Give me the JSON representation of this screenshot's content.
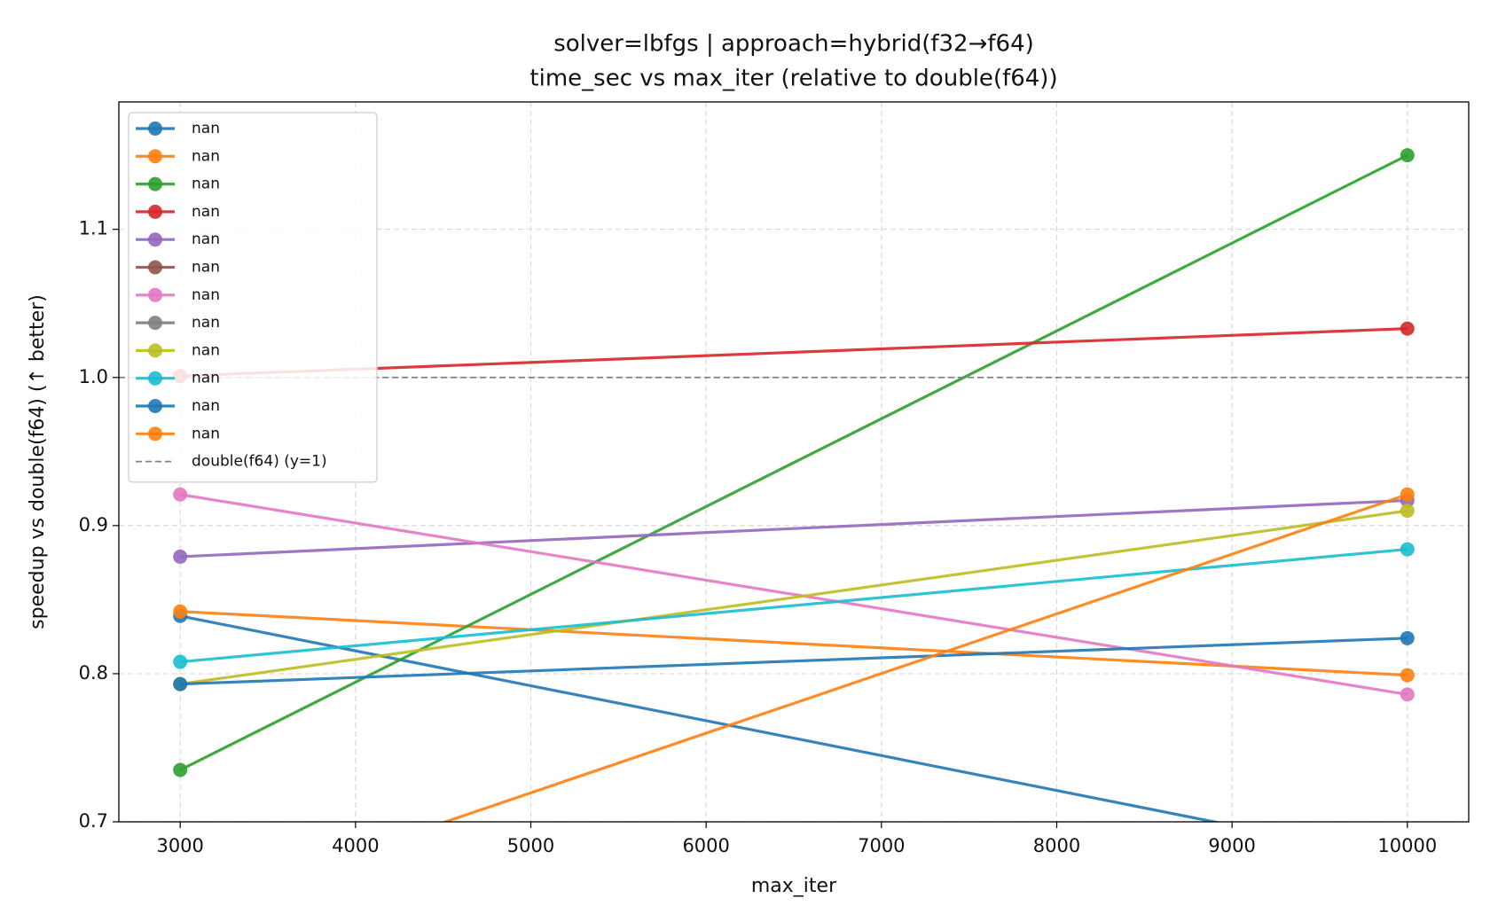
{
  "chart_data": {
    "type": "line",
    "title": "solver=lbfgs | approach=hybrid(f32→f64)",
    "subtitle": "time_sec vs max_iter (relative to double(f64))",
    "x_label": "max_iter",
    "y_label": "speedup vs double(f64) (↑ better)",
    "x": [
      3000,
      10000
    ],
    "series": [
      {
        "name": "nan",
        "color": "#1f77b4",
        "values": [
          0.839,
          0.674
        ]
      },
      {
        "name": "nan",
        "color": "#ff7f0e",
        "values": [
          0.842,
          0.799
        ]
      },
      {
        "name": "nan",
        "color": "#2ca02c",
        "values": [
          0.735,
          1.15
        ]
      },
      {
        "name": "nan",
        "color": "#d62728",
        "values": [
          1.001,
          1.033
        ]
      },
      {
        "name": "nan",
        "color": "#9467bd",
        "values": [
          0.879,
          0.917
        ]
      },
      {
        "name": "nan",
        "color": "#8c564b",
        "values": [
          null,
          null
        ]
      },
      {
        "name": "nan",
        "color": "#e377c2",
        "values": [
          0.921,
          0.786
        ]
      },
      {
        "name": "nan",
        "color": "#7f7f7f",
        "values": [
          null,
          null
        ]
      },
      {
        "name": "nan",
        "color": "#bcbd22",
        "values": [
          0.793,
          0.91
        ]
      },
      {
        "name": "nan",
        "color": "#17becf",
        "values": [
          0.808,
          0.884
        ]
      },
      {
        "name": "nan",
        "color": "#1f77b4",
        "values": [
          0.793,
          0.824
        ]
      },
      {
        "name": "nan",
        "color": "#ff7f0e",
        "values": [
          0.639,
          0.921
        ]
      }
    ],
    "reference_line": {
      "name": "double(f64) (y=1)",
      "value": 1,
      "color": "#808080"
    },
    "xlim": [
      2650,
      10350
    ],
    "ylim": [
      0.7,
      1.186
    ],
    "xticks": [
      3000,
      4000,
      5000,
      6000,
      7000,
      8000,
      9000,
      10000
    ],
    "yticks": [
      0.7,
      0.8,
      0.9,
      {
        "value": 1,
        "label": "1.0"
      },
      1.1
    ],
    "grid": true,
    "legend": "upper-left"
  }
}
